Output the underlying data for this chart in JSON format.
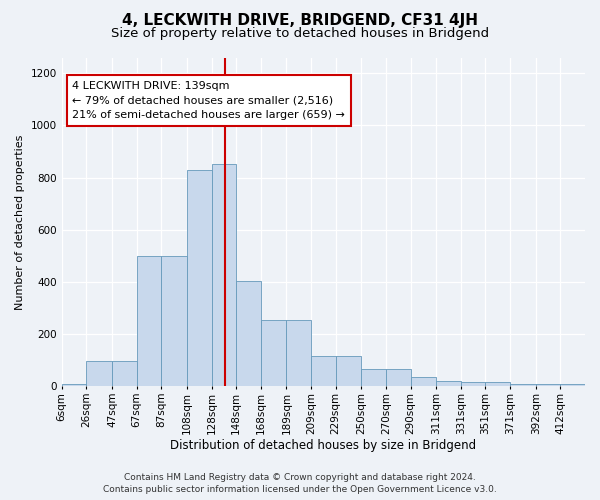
{
  "title": "4, LECKWITH DRIVE, BRIDGEND, CF31 4JH",
  "subtitle": "Size of property relative to detached houses in Bridgend",
  "xlabel": "Distribution of detached houses by size in Bridgend",
  "ylabel": "Number of detached properties",
  "footnote1": "Contains HM Land Registry data © Crown copyright and database right 2024.",
  "footnote2": "Contains public sector information licensed under the Open Government Licence v3.0.",
  "bin_labels": [
    "6sqm",
    "26sqm",
    "47sqm",
    "67sqm",
    "87sqm",
    "108sqm",
    "128sqm",
    "148sqm",
    "168sqm",
    "189sqm",
    "209sqm",
    "229sqm",
    "250sqm",
    "270sqm",
    "290sqm",
    "311sqm",
    "331sqm",
    "351sqm",
    "371sqm",
    "392sqm",
    "412sqm"
  ],
  "bin_edges": [
    6,
    26,
    47,
    67,
    87,
    108,
    128,
    148,
    168,
    189,
    209,
    229,
    250,
    270,
    290,
    311,
    331,
    351,
    371,
    392,
    412
  ],
  "bar_heights": [
    10,
    95,
    95,
    500,
    500,
    830,
    850,
    405,
    255,
    255,
    115,
    115,
    68,
    68,
    35,
    20,
    15,
    15,
    10,
    10,
    10
  ],
  "bar_color": "#c8d8ec",
  "bar_edge_color": "#6699bb",
  "property_size": 139,
  "vline_color": "#cc0000",
  "annotation_line1": "4 LECKWITH DRIVE: 139sqm",
  "annotation_line2": "← 79% of detached houses are smaller (2,516)",
  "annotation_line3": "21% of semi-detached houses are larger (659) →",
  "annotation_box_edge": "#cc0000",
  "ylim": [
    0,
    1260
  ],
  "yticks": [
    0,
    200,
    400,
    600,
    800,
    1000,
    1200
  ],
  "background_color": "#eef2f7",
  "grid_color": "#ffffff",
  "title_fontsize": 11,
  "subtitle_fontsize": 9.5,
  "xlabel_fontsize": 8.5,
  "ylabel_fontsize": 8,
  "tick_fontsize": 7.5,
  "annotation_fontsize": 8,
  "footnote_fontsize": 6.5
}
